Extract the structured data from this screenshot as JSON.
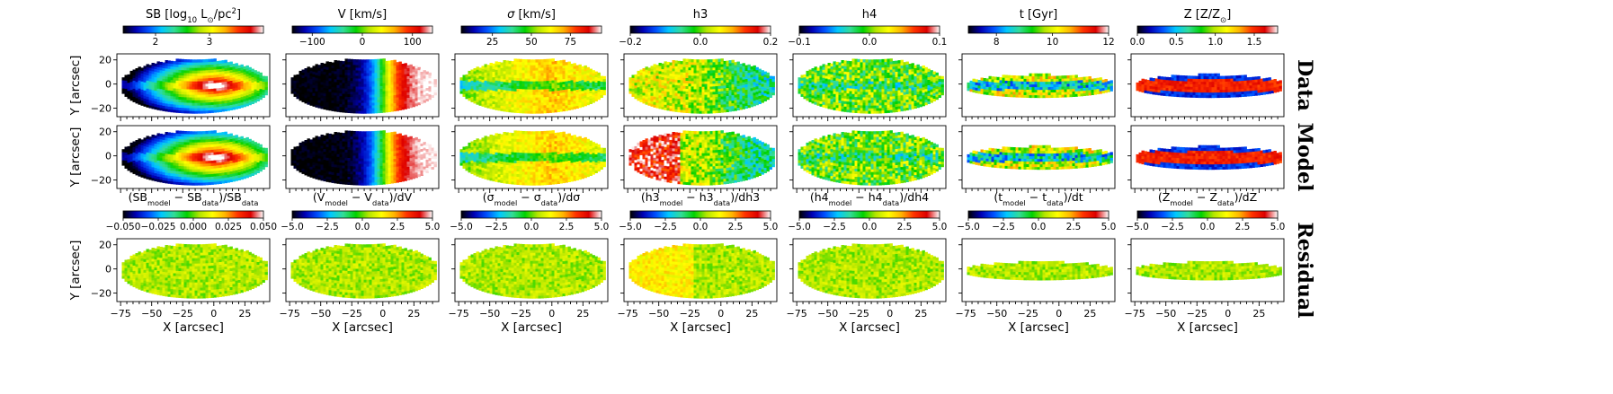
{
  "chart_data": {
    "type": "heatmap",
    "description_free": true,
    "columns": [
      {
        "key": "SB",
        "top_label_parts": [
          {
            "t": "SB [log"
          },
          {
            "t": "10",
            "sub": true
          },
          {
            "t": " L"
          },
          {
            "t": "⊙",
            "sub": true
          },
          {
            "t": "/pc"
          },
          {
            "t": "2",
            "sup": true
          },
          {
            "t": "]"
          }
        ],
        "top_ticks": [
          "2",
          "3"
        ],
        "top_range": [
          1.4,
          4.0
        ],
        "top_tick_values": [
          2,
          3
        ],
        "res_label_parts": [
          {
            "t": "(SB"
          },
          {
            "t": "model",
            "sub": true
          },
          {
            "t": " − SB"
          },
          {
            "t": "data",
            "sub": true
          },
          {
            "t": ")/SB"
          },
          {
            "t": "data",
            "sub": true
          }
        ],
        "res_ticks": [
          "−0.050",
          "−0.025",
          "0.000",
          "0.025",
          "0.050"
        ],
        "res_range": [
          -0.05,
          0.05
        ]
      },
      {
        "key": "V",
        "top_label_parts": [
          {
            "t": "V [km/s]"
          }
        ],
        "top_ticks": [
          "−100",
          "0",
          "100"
        ],
        "top_range": [
          -140,
          140
        ],
        "top_tick_values": [
          -100,
          0,
          100
        ],
        "res_label_parts": [
          {
            "t": "(V"
          },
          {
            "t": "model",
            "sub": true
          },
          {
            "t": " − V"
          },
          {
            "t": "data",
            "sub": true
          },
          {
            "t": ")/dV"
          }
        ],
        "res_ticks": [
          "−5.0",
          "−2.5",
          "0.0",
          "2.5",
          "5.0"
        ],
        "res_range": [
          -5,
          5
        ]
      },
      {
        "key": "sigma",
        "top_label_parts": [
          {
            "t": "σ",
            "italic": true
          },
          {
            "t": " [km/s]"
          }
        ],
        "top_ticks": [
          "25",
          "50",
          "75"
        ],
        "top_range": [
          5,
          95
        ],
        "top_tick_values": [
          25,
          50,
          75
        ],
        "res_label_parts": [
          {
            "t": "(σ"
          },
          {
            "t": "model",
            "sub": true
          },
          {
            "t": " − σ"
          },
          {
            "t": "data",
            "sub": true
          },
          {
            "t": ")/dσ"
          }
        ],
        "res_ticks": [
          "−5.0",
          "−2.5",
          "0.0",
          "2.5",
          "5.0"
        ],
        "res_range": [
          -5,
          5
        ]
      },
      {
        "key": "h3",
        "top_label_parts": [
          {
            "t": "h3"
          }
        ],
        "top_ticks": [
          "−0.2",
          "0.0",
          "0.2"
        ],
        "top_range": [
          -0.2,
          0.2
        ],
        "top_tick_values": [
          -0.2,
          0,
          0.2
        ],
        "res_label_parts": [
          {
            "t": "(h3"
          },
          {
            "t": "model",
            "sub": true
          },
          {
            "t": " − h3"
          },
          {
            "t": "data",
            "sub": true
          },
          {
            "t": ")/dh3"
          }
        ],
        "res_ticks": [
          "−5.0",
          "−2.5",
          "0.0",
          "2.5",
          "5.0"
        ],
        "res_range": [
          -5,
          5
        ]
      },
      {
        "key": "h4",
        "top_label_parts": [
          {
            "t": "h4"
          }
        ],
        "top_ticks": [
          "−0.1",
          "0.0",
          "0.1"
        ],
        "top_range": [
          -0.1,
          0.1
        ],
        "top_tick_values": [
          -0.1,
          0,
          0.1
        ],
        "res_label_parts": [
          {
            "t": "(h4"
          },
          {
            "t": "model",
            "sub": true
          },
          {
            "t": " − h4"
          },
          {
            "t": "data",
            "sub": true
          },
          {
            "t": ")/dh4"
          }
        ],
        "res_ticks": [
          "−5.0",
          "−2.5",
          "0.0",
          "2.5",
          "5.0"
        ],
        "res_range": [
          -5,
          5
        ]
      },
      {
        "key": "t",
        "top_label_parts": [
          {
            "t": "t [Gyr]"
          }
        ],
        "top_ticks": [
          "8",
          "10",
          "12"
        ],
        "top_range": [
          7,
          12
        ],
        "top_tick_values": [
          8,
          10,
          12
        ],
        "res_label_parts": [
          {
            "t": "(t"
          },
          {
            "t": "model",
            "sub": true
          },
          {
            "t": " − t"
          },
          {
            "t": "data",
            "sub": true
          },
          {
            "t": ")/dt"
          }
        ],
        "res_ticks": [
          "−5.0",
          "−2.5",
          "0.0",
          "2.5",
          "5.0"
        ],
        "res_range": [
          -5,
          5
        ]
      },
      {
        "key": "Z",
        "top_label_parts": [
          {
            "t": "Z [Z/Z"
          },
          {
            "t": "⊙",
            "sub": true
          },
          {
            "t": "]"
          }
        ],
        "top_ticks": [
          "0.0",
          "0.5",
          "1.0",
          "1.5"
        ],
        "top_range": [
          0,
          1.8
        ],
        "top_tick_values": [
          0,
          0.5,
          1.0,
          1.5
        ],
        "res_label_parts": [
          {
            "t": "(Z"
          },
          {
            "t": "model",
            "sub": true
          },
          {
            "t": " − Z"
          },
          {
            "t": "data",
            "sub": true
          },
          {
            "t": ")/dZ"
          }
        ],
        "res_ticks": [
          "−5.0",
          "−2.5",
          "0.0",
          "2.5",
          "5.0"
        ],
        "res_range": [
          -5,
          5
        ]
      }
    ],
    "rows": [
      "Data",
      "Model",
      "Residual"
    ],
    "xlabel": "X [arcsec]",
    "ylabel": "Y [arcsec]",
    "xticks": [
      "−75",
      "−50",
      "−25",
      "0",
      "25"
    ],
    "xtick_values": [
      -75,
      -50,
      -25,
      0,
      25
    ],
    "xlim": [
      -78,
      45
    ],
    "yticks": [
      "20",
      "0",
      "−20"
    ],
    "ytick_values": [
      20,
      0,
      -20
    ],
    "ylim": [
      -27,
      25
    ],
    "colormap": "jet-like (black, blue, cyan, green, yellow, orange, red, white)",
    "colormap_stops": [
      "#000000",
      "#0000b4",
      "#0050ff",
      "#00c8ff",
      "#32dc96",
      "#00d200",
      "#b4e600",
      "#ffff00",
      "#ffb400",
      "#ff3200",
      "#dc0000",
      "#ffffff"
    ],
    "grid": false,
    "legend": "none"
  }
}
